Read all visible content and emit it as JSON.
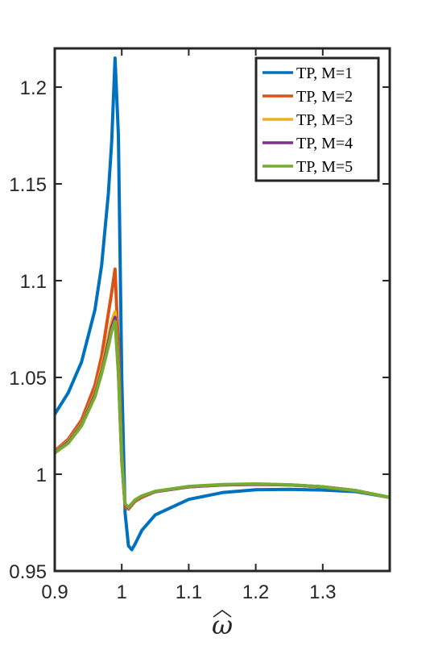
{
  "chart_data": {
    "type": "line",
    "title": "",
    "xlabel": "ω",
    "ylabel": "",
    "xlim": [
      0.9,
      1.4
    ],
    "ylim": [
      0.95,
      1.22
    ],
    "xticks": [
      0.9,
      1.0,
      1.1,
      1.2,
      1.3
    ],
    "xtick_labels": [
      "0.9",
      "1",
      "1.1",
      "1.2",
      "1.3"
    ],
    "yticks": [
      0.95,
      1.0,
      1.05,
      1.1,
      1.15,
      1.2
    ],
    "ytick_labels": [
      "0.95",
      "1",
      "1.05",
      "1.1",
      "1.15",
      "1.2"
    ],
    "grid": false,
    "legend": {
      "location": "top-right",
      "entries": [
        "TP, M=1",
        "TP, M=2",
        "TP, M=3",
        "TP, M=4",
        "TP, M=5"
      ]
    },
    "series": [
      {
        "name": "TP, M=1",
        "color": "#0072BD",
        "x": [
          0.9,
          0.92,
          0.94,
          0.96,
          0.97,
          0.98,
          0.985,
          0.99,
          0.995,
          1.0,
          1.005,
          1.01,
          1.015,
          1.02,
          1.03,
          1.05,
          1.1,
          1.15,
          1.2,
          1.25,
          1.3,
          1.35,
          1.4
        ],
        "y": [
          1.031,
          1.042,
          1.058,
          1.085,
          1.108,
          1.145,
          1.172,
          1.215,
          1.175,
          1.05,
          0.98,
          0.963,
          0.961,
          0.964,
          0.971,
          0.979,
          0.987,
          0.9905,
          0.992,
          0.9922,
          0.9918,
          0.991,
          0.988
        ]
      },
      {
        "name": "TP, M=2",
        "color": "#D95319",
        "x": [
          0.9,
          0.92,
          0.94,
          0.96,
          0.97,
          0.98,
          0.985,
          0.99,
          0.995,
          1.0,
          1.005,
          1.01,
          1.015,
          1.02,
          1.03,
          1.05,
          1.1,
          1.15,
          1.2,
          1.25,
          1.3,
          1.35,
          1.4
        ],
        "y": [
          1.012,
          1.018,
          1.028,
          1.046,
          1.061,
          1.083,
          1.094,
          1.106,
          1.065,
          1.01,
          0.983,
          0.982,
          0.984,
          0.986,
          0.988,
          0.991,
          0.9935,
          0.9945,
          0.9948,
          0.9945,
          0.9935,
          0.9915,
          0.988
        ]
      },
      {
        "name": "TP, M=3",
        "color": "#EDB120",
        "x": [
          0.9,
          0.92,
          0.94,
          0.96,
          0.97,
          0.98,
          0.985,
          0.99,
          0.995,
          1.0,
          1.005,
          1.01,
          1.015,
          1.02,
          1.03,
          1.05,
          1.1,
          1.15,
          1.2,
          1.25,
          1.3,
          1.35,
          1.4
        ],
        "y": [
          1.0115,
          1.017,
          1.026,
          1.042,
          1.055,
          1.071,
          1.079,
          1.084,
          1.055,
          1.008,
          0.984,
          0.9825,
          0.9845,
          0.9865,
          0.9885,
          0.991,
          0.9935,
          0.9945,
          0.9948,
          0.9945,
          0.9935,
          0.9915,
          0.988
        ]
      },
      {
        "name": "TP, M=4",
        "color": "#7E2F8E",
        "x": [
          0.9,
          0.92,
          0.94,
          0.96,
          0.97,
          0.98,
          0.985,
          0.99,
          0.995,
          1.0,
          1.005,
          1.01,
          1.015,
          1.02,
          1.03,
          1.05,
          1.1,
          1.15,
          1.2,
          1.25,
          1.3,
          1.35,
          1.4
        ],
        "y": [
          1.0112,
          1.0165,
          1.0255,
          1.041,
          1.053,
          1.068,
          1.076,
          1.081,
          1.053,
          1.007,
          0.984,
          0.9827,
          0.9846,
          0.9866,
          0.9886,
          0.991,
          0.9935,
          0.9945,
          0.9948,
          0.9945,
          0.9935,
          0.9915,
          0.988
        ]
      },
      {
        "name": "TP, M=5",
        "color": "#77AC30",
        "x": [
          0.9,
          0.92,
          0.94,
          0.96,
          0.97,
          0.98,
          0.985,
          0.99,
          0.995,
          1.0,
          1.005,
          1.01,
          1.015,
          1.02,
          1.03,
          1.05,
          1.1,
          1.15,
          1.2,
          1.25,
          1.3,
          1.35,
          1.4
        ],
        "y": [
          1.011,
          1.016,
          1.025,
          1.04,
          1.052,
          1.066,
          1.074,
          1.079,
          1.052,
          1.007,
          0.9845,
          0.983,
          0.9848,
          0.9868,
          0.9888,
          0.9912,
          0.9937,
          0.9947,
          0.995,
          0.9946,
          0.9935,
          0.9915,
          0.988
        ]
      }
    ]
  }
}
